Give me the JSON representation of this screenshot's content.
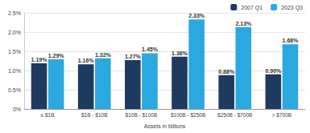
{
  "chart_data": {
    "type": "bar",
    "x_label": "Assets in billions",
    "categories": [
      "≤ $1B",
      "$1B - $10B",
      "$10B - $100B",
      "$100B - $250B",
      "$250B - $700B",
      "> $700B"
    ],
    "series": [
      {
        "name": "2007 Q1",
        "color": "#1e3a5f",
        "values": [
          1.19,
          1.16,
          1.27,
          1.36,
          0.88,
          0.9
        ],
        "value_labels": [
          "1.19%",
          "1.16%",
          "1.27%",
          "1.36%",
          "0.88%",
          "0.90%"
        ]
      },
      {
        "name": "2023 Q3",
        "color": "#2ba8e0",
        "values": [
          1.29,
          1.32,
          1.45,
          2.33,
          2.13,
          1.68
        ],
        "value_labels": [
          "1.29%",
          "1.32%",
          "1.45%",
          "2.33%",
          "2.13%",
          "1.68%"
        ]
      }
    ],
    "ylim": [
      0,
      2.5
    ],
    "yticks": [
      {
        "value": 0,
        "label": "0%"
      },
      {
        "value": 0.5,
        "label": "0.5%"
      },
      {
        "value": 1,
        "label": "1.0%"
      },
      {
        "value": 1.5,
        "label": "1.5%"
      },
      {
        "value": 2,
        "label": "2.0%"
      },
      {
        "value": 2.5,
        "label": "2.5%"
      }
    ],
    "grid": true,
    "legend": "top-right",
    "data_labels": true
  }
}
